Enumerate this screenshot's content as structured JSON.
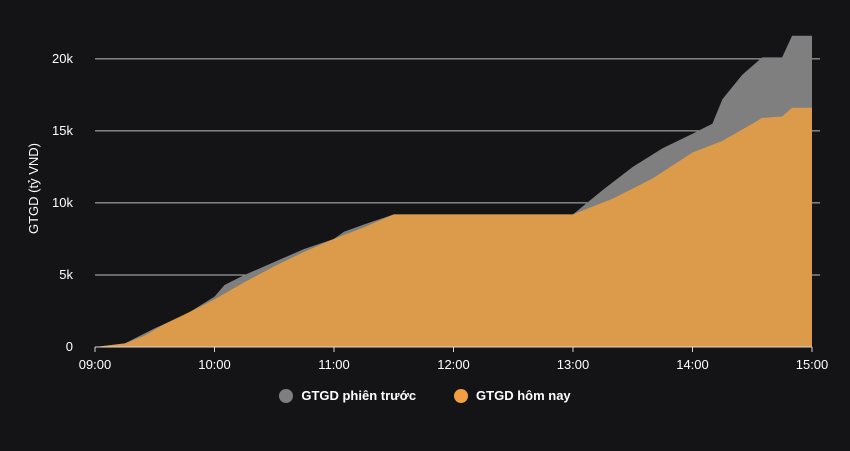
{
  "chart_data": {
    "type": "area",
    "ylabel": "GTGD (tỷ VND)",
    "xlabel": "",
    "x_ticks": [
      "09:00",
      "10:00",
      "11:00",
      "12:00",
      "13:00",
      "14:00",
      "15:00"
    ],
    "y_ticks": [
      {
        "value": 0,
        "label": "0"
      },
      {
        "value": 5000,
        "label": "5k"
      },
      {
        "value": 10000,
        "label": "10k"
      },
      {
        "value": 15000,
        "label": "15k"
      },
      {
        "value": 20000,
        "label": "20k"
      }
    ],
    "ylim": [
      0,
      22000
    ],
    "xlim": [
      "09:00",
      "15:00"
    ],
    "grid": true,
    "legend_position": "bottom-center",
    "series": [
      {
        "name": "GTGD phiên trước",
        "color": "#7f7f7f",
        "points": [
          [
            "09:00",
            0
          ],
          [
            "09:15",
            250
          ],
          [
            "09:20",
            600
          ],
          [
            "09:30",
            1300
          ],
          [
            "09:45",
            2200
          ],
          [
            "10:00",
            3500
          ],
          [
            "10:05",
            4300
          ],
          [
            "10:15",
            5000
          ],
          [
            "10:30",
            5900
          ],
          [
            "10:45",
            6800
          ],
          [
            "11:00",
            7500
          ],
          [
            "11:05",
            8000
          ],
          [
            "11:15",
            8500
          ],
          [
            "11:30",
            9200
          ],
          [
            "12:00",
            9200
          ],
          [
            "13:00",
            9200
          ],
          [
            "13:15",
            10900
          ],
          [
            "13:30",
            12500
          ],
          [
            "13:45",
            13800
          ],
          [
            "14:00",
            14800
          ],
          [
            "14:10",
            15500
          ],
          [
            "14:15",
            17200
          ],
          [
            "14:25",
            18900
          ],
          [
            "14:30",
            19500
          ],
          [
            "14:35",
            20100
          ],
          [
            "14:45",
            20100
          ],
          [
            "14:50",
            21600
          ],
          [
            "15:00",
            21600
          ]
        ]
      },
      {
        "name": "GTGD hôm nay",
        "color": "#f0a040",
        "points": [
          [
            "09:00",
            0
          ],
          [
            "09:15",
            250
          ],
          [
            "09:25",
            800
          ],
          [
            "09:35",
            1600
          ],
          [
            "09:50",
            2600
          ],
          [
            "10:00",
            3300
          ],
          [
            "10:15",
            4500
          ],
          [
            "10:30",
            5600
          ],
          [
            "10:45",
            6600
          ],
          [
            "11:00",
            7500
          ],
          [
            "11:15",
            8300
          ],
          [
            "11:30",
            9200
          ],
          [
            "12:00",
            9200
          ],
          [
            "13:00",
            9200
          ],
          [
            "13:20",
            10300
          ],
          [
            "13:40",
            11700
          ],
          [
            "14:00",
            13500
          ],
          [
            "14:15",
            14300
          ],
          [
            "14:30",
            15500
          ],
          [
            "14:35",
            15900
          ],
          [
            "14:45",
            16000
          ],
          [
            "14:50",
            16600
          ],
          [
            "15:00",
            16600
          ]
        ]
      }
    ]
  }
}
